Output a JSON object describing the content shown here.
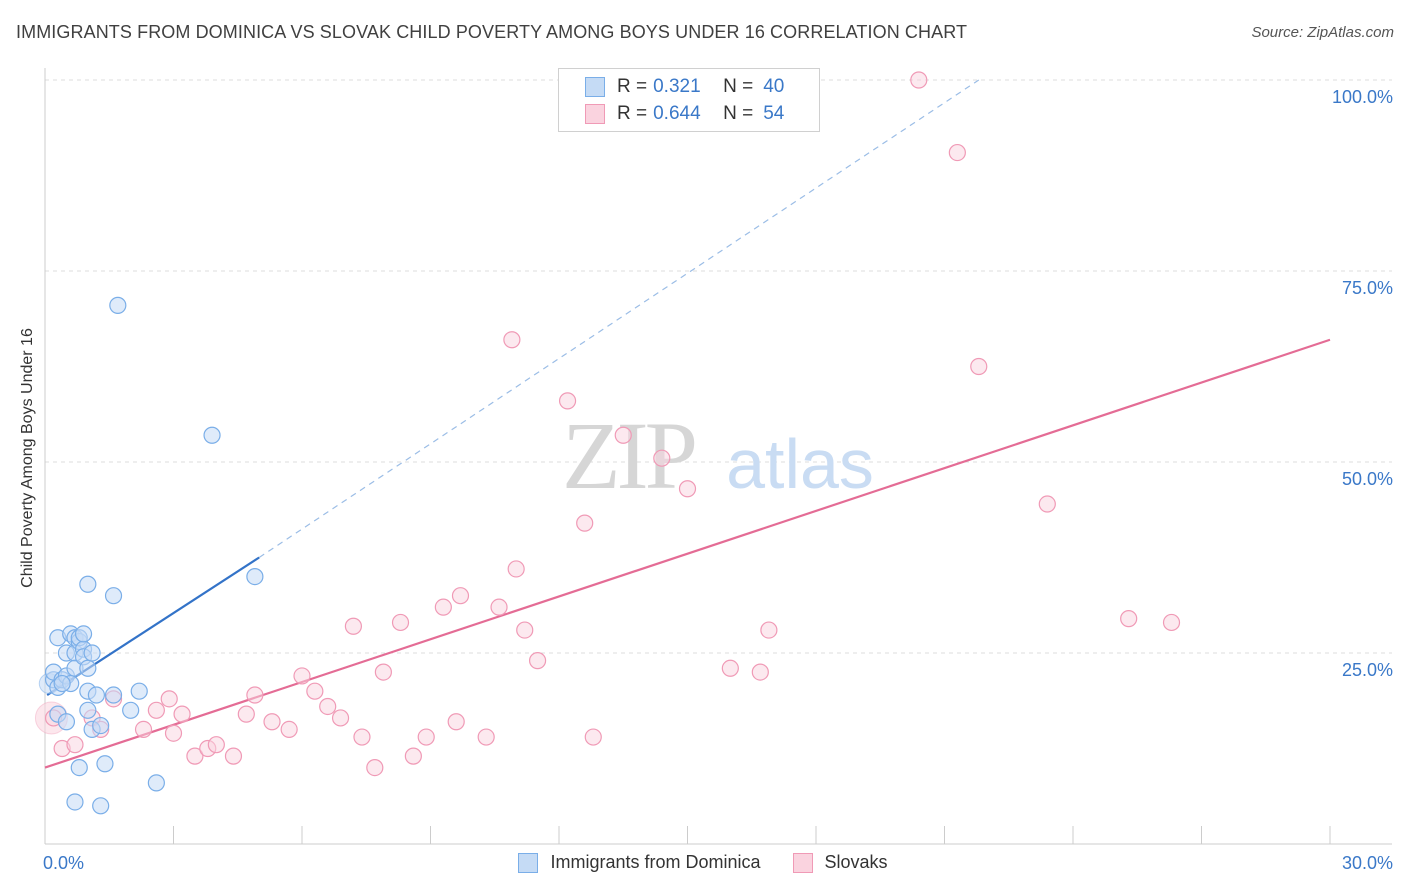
{
  "header": {
    "title": "IMMIGRANTS FROM DOMINICA VS SLOVAK CHILD POVERTY AMONG BOYS UNDER 16 CORRELATION CHART",
    "source": "Source: ZipAtlas.com"
  },
  "watermark": {
    "zip": "ZIP",
    "atlas": "atlas"
  },
  "legend": {
    "r_label": "R =",
    "n_label": "N =",
    "series": [
      {
        "r": "0.321",
        "n": "40"
      },
      {
        "r": "0.644",
        "n": "54"
      }
    ]
  },
  "chart_data": {
    "type": "scatter",
    "title": "IMMIGRANTS FROM DOMINICA VS SLOVAK CHILD POVERTY AMONG BOYS UNDER 16 CORRELATION CHART",
    "xlabel": "",
    "ylabel": "Child Poverty Among Boys Under 16",
    "xlim": [
      0,
      30
    ],
    "ylim": [
      0,
      100
    ],
    "x_tick_labels": [
      "0.0%",
      "30.0%"
    ],
    "y_ticks": [
      25,
      50,
      75,
      100
    ],
    "y_tick_labels": [
      "25.0%",
      "50.0%",
      "75.0%",
      "100.0%"
    ],
    "grid": true,
    "colors": {
      "blue": "#7aaee8",
      "blue_fill": "#c5dbf5",
      "blue_line": "#3373c8",
      "pink": "#f09ab6",
      "pink_fill": "#fad3df",
      "pink_line": "#e46c95",
      "tick_label": "#3a78c8"
    },
    "series": [
      {
        "name": "Immigrants from Dominica",
        "color": "#7aaee8",
        "points": [
          [
            0.2,
            21.5
          ],
          [
            0.2,
            22.5
          ],
          [
            0.3,
            20.5
          ],
          [
            0.3,
            17.0
          ],
          [
            0.3,
            27.0
          ],
          [
            0.4,
            21.5
          ],
          [
            0.5,
            22.0
          ],
          [
            0.5,
            16.0
          ],
          [
            0.5,
            25.0
          ],
          [
            0.6,
            21.0
          ],
          [
            0.6,
            27.5
          ],
          [
            0.7,
            25.0
          ],
          [
            0.7,
            27.0
          ],
          [
            0.8,
            26.5
          ],
          [
            0.8,
            27.0
          ],
          [
            0.7,
            23.0
          ],
          [
            0.7,
            5.5
          ],
          [
            0.8,
            10.0
          ],
          [
            0.9,
            25.5
          ],
          [
            0.9,
            24.5
          ],
          [
            1.0,
            20.0
          ],
          [
            1.0,
            17.5
          ],
          [
            1.0,
            23.0
          ],
          [
            1.0,
            34.0
          ],
          [
            1.1,
            15.0
          ],
          [
            1.1,
            25.0
          ],
          [
            1.2,
            19.5
          ],
          [
            1.3,
            5.0
          ],
          [
            1.3,
            15.5
          ],
          [
            1.4,
            10.5
          ],
          [
            1.6,
            32.5
          ],
          [
            1.7,
            70.5
          ],
          [
            2.0,
            17.5
          ],
          [
            2.2,
            20.0
          ],
          [
            2.6,
            8.0
          ],
          [
            3.9,
            53.5
          ],
          [
            4.9,
            35.0
          ],
          [
            0.4,
            21.0
          ],
          [
            0.9,
            27.5
          ],
          [
            1.6,
            19.5
          ]
        ],
        "trend": {
          "x": [
            0.05,
            5.0
          ],
          "y": [
            19.5,
            37.5
          ]
        },
        "trend_dashed": {
          "x": [
            5.0,
            21.8
          ],
          "y": [
            37.5,
            100.0
          ]
        }
      },
      {
        "name": "Slovaks",
        "color": "#f09ab6",
        "points": [
          [
            0.2,
            16.5
          ],
          [
            0.4,
            12.5
          ],
          [
            0.7,
            13.0
          ],
          [
            1.1,
            16.5
          ],
          [
            1.3,
            15.0
          ],
          [
            1.6,
            19.0
          ],
          [
            2.3,
            15.0
          ],
          [
            2.6,
            17.5
          ],
          [
            2.9,
            19.0
          ],
          [
            3.0,
            14.5
          ],
          [
            3.2,
            17.0
          ],
          [
            3.5,
            11.5
          ],
          [
            3.8,
            12.5
          ],
          [
            4.0,
            13.0
          ],
          [
            4.4,
            11.5
          ],
          [
            4.7,
            17.0
          ],
          [
            4.9,
            19.5
          ],
          [
            5.3,
            16.0
          ],
          [
            5.7,
            15.0
          ],
          [
            6.0,
            22.0
          ],
          [
            6.3,
            20.0
          ],
          [
            6.6,
            18.0
          ],
          [
            6.9,
            16.5
          ],
          [
            7.2,
            28.5
          ],
          [
            7.4,
            14.0
          ],
          [
            7.7,
            10.0
          ],
          [
            7.9,
            22.5
          ],
          [
            8.3,
            29.0
          ],
          [
            8.6,
            11.5
          ],
          [
            8.9,
            14.0
          ],
          [
            9.3,
            31.0
          ],
          [
            9.6,
            16.0
          ],
          [
            9.7,
            32.5
          ],
          [
            10.3,
            14.0
          ],
          [
            10.6,
            31.0
          ],
          [
            10.9,
            66.0
          ],
          [
            11.0,
            36.0
          ],
          [
            11.2,
            28.0
          ],
          [
            11.5,
            24.0
          ],
          [
            12.2,
            58.0
          ],
          [
            12.6,
            42.0
          ],
          [
            12.8,
            14.0
          ],
          [
            13.5,
            53.5
          ],
          [
            14.4,
            50.5
          ],
          [
            15.0,
            46.5
          ],
          [
            16.0,
            23.0
          ],
          [
            16.7,
            22.5
          ],
          [
            16.9,
            28.0
          ],
          [
            20.4,
            100.0
          ],
          [
            21.3,
            90.5
          ],
          [
            21.8,
            62.5
          ],
          [
            23.4,
            44.5
          ],
          [
            25.3,
            29.5
          ],
          [
            26.3,
            29.0
          ]
        ],
        "trend": {
          "x": [
            0.0,
            30.0
          ],
          "y": [
            10.0,
            66.0
          ]
        }
      }
    ]
  },
  "bottom_legend": {
    "items": [
      {
        "label": "Immigrants from Dominica"
      },
      {
        "label": "Slovaks"
      }
    ]
  }
}
